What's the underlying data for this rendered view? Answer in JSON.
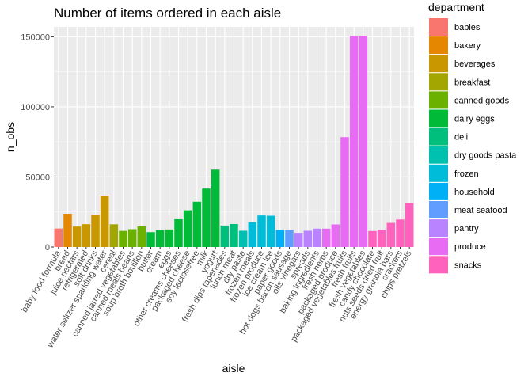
{
  "chart_data": {
    "type": "bar",
    "title": "Number of items ordered in each aisle",
    "xlabel": "aisle",
    "ylabel": "n_obs",
    "ylim": [
      0,
      157000
    ],
    "yticks": [
      0,
      50000,
      100000,
      150000
    ],
    "ytick_labels": [
      "0",
      "50000",
      "100000",
      "150000"
    ],
    "grid": true,
    "legend_position": "right",
    "legend": {
      "title": "department",
      "entries": [
        {
          "name": "babies",
          "color": "#F8766D"
        },
        {
          "name": "bakery",
          "color": "#E58700"
        },
        {
          "name": "beverages",
          "color": "#C99800"
        },
        {
          "name": "breakfast",
          "color": "#A3A500"
        },
        {
          "name": "canned goods",
          "color": "#6BB100"
        },
        {
          "name": "dairy eggs",
          "color": "#00BA38"
        },
        {
          "name": "deli",
          "color": "#00BF7D"
        },
        {
          "name": "dry goods pasta",
          "color": "#00C0AF"
        },
        {
          "name": "frozen",
          "color": "#00BCD8"
        },
        {
          "name": "household",
          "color": "#00B0F6"
        },
        {
          "name": "meat seafood",
          "color": "#619CFF"
        },
        {
          "name": "pantry",
          "color": "#B983FF"
        },
        {
          "name": "produce",
          "color": "#E76BF3"
        },
        {
          "name": "snacks",
          "color": "#FF62BC"
        }
      ]
    },
    "bars": [
      {
        "aisle": "baby food formula",
        "department": "babies",
        "value": 13200
      },
      {
        "aisle": "bread",
        "department": "bakery",
        "value": 23700
      },
      {
        "aisle": "juice nectars",
        "department": "beverages",
        "value": 14600
      },
      {
        "aisle": "refrigerated",
        "department": "beverages",
        "value": 16300
      },
      {
        "aisle": "soft drinks",
        "department": "beverages",
        "value": 23000
      },
      {
        "aisle": "water seltzer sparkling water",
        "department": "beverages",
        "value": 36600
      },
      {
        "aisle": "cereal",
        "department": "breakfast",
        "value": 16200
      },
      {
        "aisle": "canned jarred vegetables",
        "department": "canned goods",
        "value": 11500
      },
      {
        "aisle": "canned meals beans",
        "department": "canned goods",
        "value": 12700
      },
      {
        "aisle": "soup broth bouillon",
        "department": "canned goods",
        "value": 14700
      },
      {
        "aisle": "butter",
        "department": "dairy eggs",
        "value": 10600
      },
      {
        "aisle": "cream",
        "department": "dairy eggs",
        "value": 12000
      },
      {
        "aisle": "eggs",
        "department": "dairy eggs",
        "value": 12500
      },
      {
        "aisle": "other creams cheeses",
        "department": "dairy eggs",
        "value": 19800
      },
      {
        "aisle": "packaged cheese",
        "department": "dairy eggs",
        "value": 26200
      },
      {
        "aisle": "soy lactosefree",
        "department": "dairy eggs",
        "value": 32300
      },
      {
        "aisle": "milk",
        "department": "dairy eggs",
        "value": 41700
      },
      {
        "aisle": "yogurt",
        "department": "dairy eggs",
        "value": 55200
      },
      {
        "aisle": "fresh dips tapenades",
        "department": "deli",
        "value": 15300
      },
      {
        "aisle": "lunch meat",
        "department": "deli",
        "value": 16400
      },
      {
        "aisle": "dry pasta",
        "department": "dry goods pasta",
        "value": 11600
      },
      {
        "aisle": "frozen meals",
        "department": "frozen",
        "value": 17800
      },
      {
        "aisle": "frozen produce",
        "department": "frozen",
        "value": 22500
      },
      {
        "aisle": "ice cream ice",
        "department": "frozen",
        "value": 22300
      },
      {
        "aisle": "paper goods",
        "department": "household",
        "value": 12200
      },
      {
        "aisle": "hot dogs bacon sausage",
        "department": "meat seafood",
        "value": 12100
      },
      {
        "aisle": "oils vinegars",
        "department": "pantry",
        "value": 10100
      },
      {
        "aisle": "spreads",
        "department": "pantry",
        "value": 11600
      },
      {
        "aisle": "baking ingredients",
        "department": "pantry",
        "value": 13100
      },
      {
        "aisle": "fresh herbs",
        "department": "produce",
        "value": 13100
      },
      {
        "aisle": "packaged produce",
        "department": "produce",
        "value": 16100
      },
      {
        "aisle": "packaged vegetables fruits",
        "department": "produce",
        "value": 78400
      },
      {
        "aisle": "fresh fruits",
        "department": "produce",
        "value": 150500
      },
      {
        "aisle": "fresh vegetables",
        "department": "produce",
        "value": 150600
      },
      {
        "aisle": "candy chocolate",
        "department": "snacks",
        "value": 11400
      },
      {
        "aisle": "nuts seeds dried fruit",
        "department": "snacks",
        "value": 12400
      },
      {
        "aisle": "energy granola bars",
        "department": "snacks",
        "value": 17200
      },
      {
        "aisle": "crackers",
        "department": "snacks",
        "value": 19600
      },
      {
        "aisle": "chips pretzels",
        "department": "snacks",
        "value": 31300
      }
    ]
  }
}
